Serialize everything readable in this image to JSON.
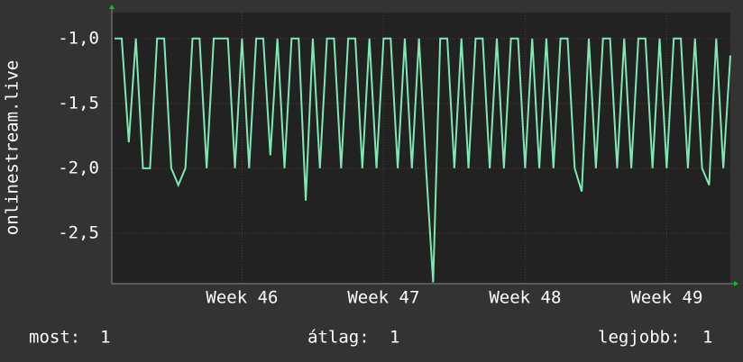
{
  "chart_data": {
    "type": "line",
    "y_label": "onlinestream.live",
    "x": [
      45.1,
      45.15,
      45.2,
      45.25,
      45.3,
      45.35,
      45.4,
      45.45,
      45.5,
      45.55,
      45.6,
      45.65,
      45.7,
      45.75,
      45.8,
      45.85,
      45.9,
      45.95,
      46.0,
      46.05,
      46.1,
      46.15,
      46.2,
      46.25,
      46.3,
      46.35,
      46.4,
      46.45,
      46.5,
      46.55,
      46.6,
      46.65,
      46.7,
      46.75,
      46.8,
      46.85,
      46.9,
      46.95,
      47.0,
      47.05,
      47.1,
      47.15,
      47.2,
      47.25,
      47.3,
      47.35,
      47.4,
      47.45,
      47.5,
      47.55,
      47.6,
      47.65,
      47.7,
      47.75,
      47.8,
      47.85,
      47.9,
      47.95,
      48.0,
      48.05,
      48.1,
      48.15,
      48.2,
      48.25,
      48.3,
      48.35,
      48.4,
      48.45,
      48.5,
      48.55,
      48.6,
      48.65,
      48.7,
      48.75,
      48.8,
      48.85,
      48.9,
      48.95,
      49.0,
      49.05,
      49.1,
      49.15,
      49.2,
      49.25,
      49.3,
      49.35,
      49.4,
      49.45
    ],
    "series": [
      {
        "name": "onlinestream.live",
        "color": "#7ee8b4",
        "values": [
          -1.0,
          -1.0,
          -1.8,
          -1.0,
          -2.0,
          -2.0,
          -1.0,
          -1.0,
          -2.0,
          -2.13,
          -2.0,
          -1.0,
          -1.0,
          -2.0,
          -1.0,
          -1.0,
          -1.0,
          -2.0,
          -1.0,
          -2.0,
          -1.0,
          -1.0,
          -1.9,
          -1.0,
          -2.0,
          -1.0,
          -1.0,
          -2.25,
          -1.0,
          -2.0,
          -1.0,
          -1.0,
          -2.0,
          -1.0,
          -1.0,
          -2.0,
          -1.0,
          -2.0,
          -1.0,
          -1.0,
          -2.0,
          -1.0,
          -2.0,
          -1.0,
          -2.0,
          -2.88,
          -1.0,
          -1.0,
          -2.0,
          -1.0,
          -2.0,
          -1.0,
          -1.0,
          -2.0,
          -1.0,
          -2.0,
          -1.0,
          -1.0,
          -2.0,
          -1.0,
          -2.0,
          -1.0,
          -2.0,
          -1.0,
          -1.0,
          -2.0,
          -2.18,
          -1.0,
          -2.0,
          -1.0,
          -1.0,
          -2.0,
          -1.0,
          -2.0,
          -1.0,
          -1.0,
          -2.0,
          -1.0,
          -2.0,
          -1.0,
          -1.0,
          -2.0,
          -1.0,
          -2.0,
          -2.13,
          -1.0,
          -2.0,
          -1.13
        ]
      }
    ],
    "xlim": [
      45.08,
      49.45
    ],
    "xticks": [
      {
        "value": 46,
        "label": "Week 46"
      },
      {
        "value": 47,
        "label": "Week 47"
      },
      {
        "value": 48,
        "label": "Week 48"
      },
      {
        "value": 49,
        "label": "Week 49"
      }
    ],
    "ylim": [
      -2.89,
      -0.8
    ],
    "yticks": [
      {
        "value": -1.0,
        "label": "-1,0"
      },
      {
        "value": -1.5,
        "label": "-1,5"
      },
      {
        "value": -2.0,
        "label": "-2,0"
      },
      {
        "value": -2.5,
        "label": "-2,5"
      }
    ],
    "grid": true,
    "legend_stats": [
      {
        "label": "most:",
        "value": 1
      },
      {
        "label": "átlag:",
        "value": 1
      },
      {
        "label": "legjobb:",
        "value": 1
      }
    ]
  }
}
